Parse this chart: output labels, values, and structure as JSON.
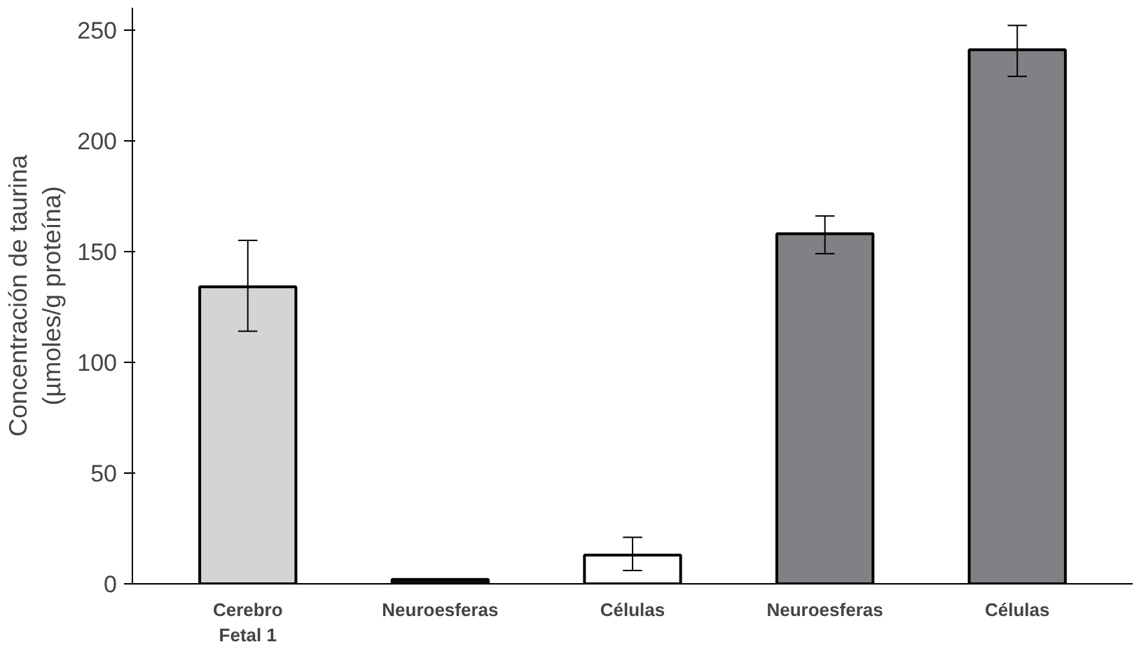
{
  "chart_data": {
    "type": "bar",
    "ylabel": "Concentración de taurina\n(µmoles/g proteína)",
    "categories": [
      "Cerebro\nFetal 1",
      "Neuroesferas",
      "Células",
      "Neuroesferas",
      "Células"
    ],
    "values": [
      134,
      2,
      13,
      158,
      241
    ],
    "colors": [
      "#d4d4d4",
      "#111111",
      "#ffffff",
      "#808085",
      "#808085"
    ],
    "errors": [
      [
        114,
        155
      ],
      null,
      [
        6,
        21
      ],
      [
        149,
        166
      ],
      [
        229,
        252
      ]
    ],
    "ylim": [
      0,
      260
    ],
    "yticks": [
      0,
      50,
      100,
      150,
      200,
      250
    ],
    "grid": false
  }
}
